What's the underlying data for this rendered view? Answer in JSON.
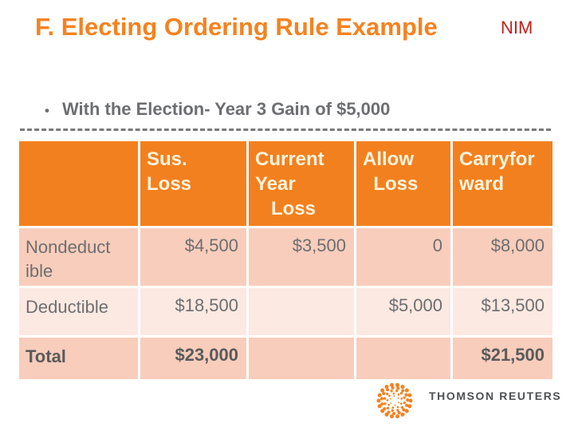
{
  "slide": {
    "title": "F. Electing Ordering Rule Example",
    "badge": "NIM",
    "bullet_glyph": "•",
    "bullet": "With the Election- Year 3 Gain of $5,000"
  },
  "table": {
    "headers": [
      "",
      "Sus.\nLoss",
      "Current\nYear\n   Loss",
      "Allow\n  Loss",
      "Carryfor\nward"
    ],
    "rows": [
      {
        "label": "Nondeduct\nible",
        "cells": [
          "$4,500",
          "$3,500",
          "0",
          "$8,000"
        ]
      },
      {
        "label": "Deductible",
        "cells": [
          "$18,500",
          "",
          "$5,000",
          "$13,500"
        ]
      },
      {
        "label": "Total",
        "cells": [
          "$23,000",
          "",
          "",
          "$21,500"
        ]
      }
    ]
  },
  "footer": {
    "logo_text": "THOMSON REUTERS"
  },
  "colors": {
    "title_orange": "#F5821F",
    "badge_red": "#C2201A",
    "text_gray": "#6D6E71",
    "divider_gray": "#7A7A7A",
    "header_bg": "#F3801E",
    "header_text": "#FCF3DE",
    "row_dark": "#F8CDBB",
    "row_light": "#FCE9E1",
    "total_text": "#5A5A5C",
    "logo_orange": "#F48120",
    "logo_text_gray": "#4F5154"
  }
}
